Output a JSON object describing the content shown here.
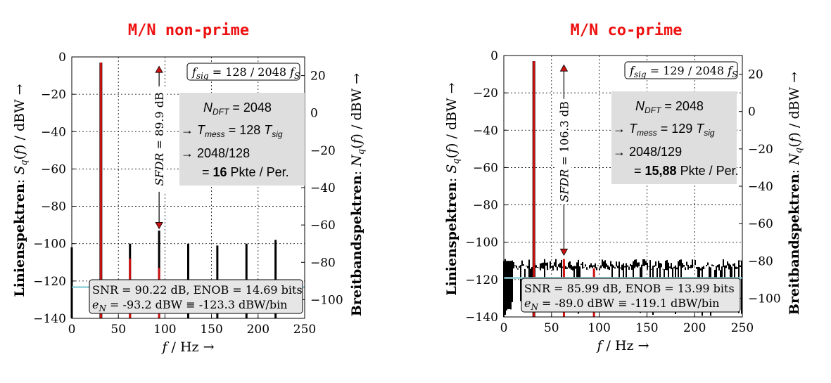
{
  "chart_data": [
    {
      "type": "bar",
      "title": "M/N non-prime",
      "xlabel": "f / Hz →",
      "ylabel": "Linienspektren: S_q(f) / dBW →",
      "ylabel2": "Breitbandspektren: N_q(f) / dBW →",
      "xlim": [
        0,
        250
      ],
      "ylim": [
        -140,
        0
      ],
      "y2lim": [
        -110,
        30
      ],
      "xticks": [
        "0",
        "50",
        "100",
        "150",
        "200",
        "250"
      ],
      "yticks": [
        "0",
        "−20",
        "−40",
        "−60",
        "−80",
        "−100",
        "−120",
        "−140"
      ],
      "y2ticks": [
        "20",
        "0",
        "−20",
        "−40",
        "−60",
        "−80",
        "−100"
      ],
      "grid": true,
      "signal_line": {
        "x": 31.25,
        "y": -3
      },
      "harmonic_lines": [
        {
          "x": 0,
          "y": -102
        },
        {
          "x": 62.5,
          "y": -100
        },
        {
          "x": 93.75,
          "y": -93
        },
        {
          "x": 125,
          "y": -100
        },
        {
          "x": 156.25,
          "y": -101
        },
        {
          "x": 187.5,
          "y": -100
        },
        {
          "x": 218.75,
          "y": -98
        }
      ],
      "red_segments": [
        {
          "x": 31.25,
          "y_top": -3
        },
        {
          "x": 62.5,
          "y_top": -108
        },
        {
          "x": 93.75,
          "y_top": -113
        }
      ],
      "noise_floor": -123.3,
      "sfdr_label": "SFDR = 89.9 dB",
      "fsig_label": "f_sig = 128 / 2048 f_S",
      "info_box": {
        "line1_var": "N",
        "line1_sub": "DFT",
        "line1_val": "= 2048",
        "line2_pre": "→ ",
        "line2_var": "T",
        "line2_sub": "mess",
        "line2_mid": "= 128 ",
        "line2_var2": "T",
        "line2_sub2": "sig",
        "line3": "→ 2048/128",
        "line4_pre": "= ",
        "line4_bold": "16",
        "line4_post": " Pkte / Per."
      },
      "snr_box": {
        "line1": "SNR = 90.22 dB, ENOB = 14.69 bits",
        "line2_var": "e",
        "line2_sub": "N",
        "line2_rest": " = -93.2 dBW ≡ -123.3 dBW/bin"
      }
    },
    {
      "type": "bar",
      "title": "M/N co-prime",
      "xlabel": "f / Hz →",
      "ylabel": "Linienspektren: S_q(f) / dBW →",
      "ylabel2": "Breitbandspektren: N_q(f) / dBW →",
      "xlim": [
        0,
        250
      ],
      "ylim": [
        -140,
        0
      ],
      "y2lim": [
        -110,
        30
      ],
      "xticks": [
        "0",
        "50",
        "100",
        "150",
        "200",
        "250"
      ],
      "yticks": [
        "0",
        "−20",
        "−40",
        "−60",
        "−80",
        "−100",
        "−120",
        "−140"
      ],
      "y2ticks": [
        "20",
        "0",
        "−20",
        "−40",
        "−60",
        "−80",
        "−100"
      ],
      "grid": true,
      "signal_line": {
        "x": 31.5,
        "y": -3
      },
      "harmonic_lines": [],
      "red_segments": [
        {
          "x": 31.5,
          "y_top": -3
        },
        {
          "x": 63,
          "y_top": -109
        },
        {
          "x": 94.5,
          "y_top": -114
        }
      ],
      "noise_floor": -119.1,
      "noise_band_top": -112,
      "sfdr_label": "SFDR = 106.3 dB",
      "fsig_label": "f_sig = 129 / 2048 f_S",
      "info_box": {
        "line1_var": "N",
        "line1_sub": "DFT",
        "line1_val": "= 2048",
        "line2_pre": "→ ",
        "line2_var": "T",
        "line2_sub": "mess",
        "line2_mid": "= 129 ",
        "line2_var2": "T",
        "line2_sub2": "sig",
        "line3": "→ 2048/129",
        "line4_pre": "= ",
        "line4_bold": "15,88",
        "line4_post": " Pkte / Per."
      },
      "snr_box": {
        "line1": "SNR = 85.99 dB, ENOB = 13.99 bits",
        "line2_var": "e",
        "line2_sub": "N",
        "line2_rest": " = -89.0 dBW ≡ -119.1 dBW/bin"
      }
    }
  ]
}
